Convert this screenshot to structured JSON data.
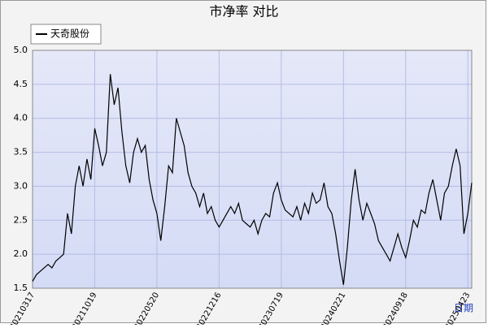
{
  "chart_data": {
    "type": "line",
    "title": "市净率 对比",
    "xlabel": "日期",
    "categories": [
      "20210317",
      null,
      null,
      null,
      null,
      null,
      null,
      null,
      null,
      null,
      null,
      null,
      null,
      null,
      null,
      null,
      "20211019",
      null,
      null,
      null,
      null,
      null,
      null,
      null,
      null,
      null,
      null,
      null,
      null,
      null,
      null,
      null,
      "20220520",
      null,
      null,
      null,
      null,
      null,
      null,
      null,
      null,
      null,
      null,
      null,
      null,
      null,
      null,
      null,
      "20221216",
      null,
      null,
      null,
      null,
      null,
      null,
      null,
      null,
      null,
      null,
      null,
      null,
      null,
      null,
      null,
      "20230719",
      null,
      null,
      null,
      null,
      null,
      null,
      null,
      null,
      null,
      null,
      null,
      null,
      null,
      null,
      null,
      "20240221",
      null,
      null,
      null,
      null,
      null,
      null,
      null,
      null,
      null,
      null,
      null,
      null,
      null,
      null,
      null,
      "20240918",
      null,
      null,
      null,
      null,
      null,
      null,
      null,
      null,
      null,
      null,
      null,
      null,
      null,
      null,
      null,
      "20250423",
      null
    ],
    "series": [
      {
        "name": "天奇股份",
        "color": "#000000",
        "values": [
          1.6,
          1.7,
          1.75,
          1.8,
          1.85,
          1.8,
          1.9,
          1.95,
          2.0,
          2.6,
          2.3,
          3.0,
          3.3,
          3.0,
          3.4,
          3.1,
          3.85,
          3.6,
          3.3,
          3.5,
          4.65,
          4.2,
          4.45,
          3.8,
          3.3,
          3.05,
          3.5,
          3.7,
          3.5,
          3.6,
          3.1,
          2.8,
          2.6,
          2.2,
          2.7,
          3.3,
          3.2,
          4.0,
          3.8,
          3.6,
          3.2,
          3.0,
          2.9,
          2.7,
          2.9,
          2.6,
          2.7,
          2.5,
          2.4,
          2.5,
          2.6,
          2.7,
          2.6,
          2.75,
          2.5,
          2.45,
          2.4,
          2.5,
          2.3,
          2.5,
          2.6,
          2.55,
          2.9,
          3.05,
          2.8,
          2.65,
          2.6,
          2.55,
          2.7,
          2.5,
          2.75,
          2.6,
          2.9,
          2.75,
          2.8,
          3.05,
          2.7,
          2.6,
          2.3,
          1.9,
          1.55,
          2.1,
          2.8,
          3.25,
          2.8,
          2.5,
          2.75,
          2.6,
          2.45,
          2.2,
          2.1,
          2.0,
          1.9,
          2.1,
          2.3,
          2.1,
          1.95,
          2.2,
          2.5,
          2.4,
          2.65,
          2.6,
          2.9,
          3.1,
          2.8,
          2.5,
          2.9,
          3.0,
          3.3,
          3.55,
          3.3,
          2.3,
          2.6,
          3.05
        ]
      }
    ],
    "ylim": [
      1.5,
      5.0
    ],
    "yticks": [
      1.5,
      {
        "value": 2,
        "label": "2.0"
      },
      2.5,
      {
        "value": 3,
        "label": "3.0"
      },
      3.5,
      {
        "value": 4,
        "label": "4.0"
      },
      4.5,
      {
        "value": 5,
        "label": "5.0"
      }
    ],
    "grid": true,
    "legend": "upper left"
  }
}
